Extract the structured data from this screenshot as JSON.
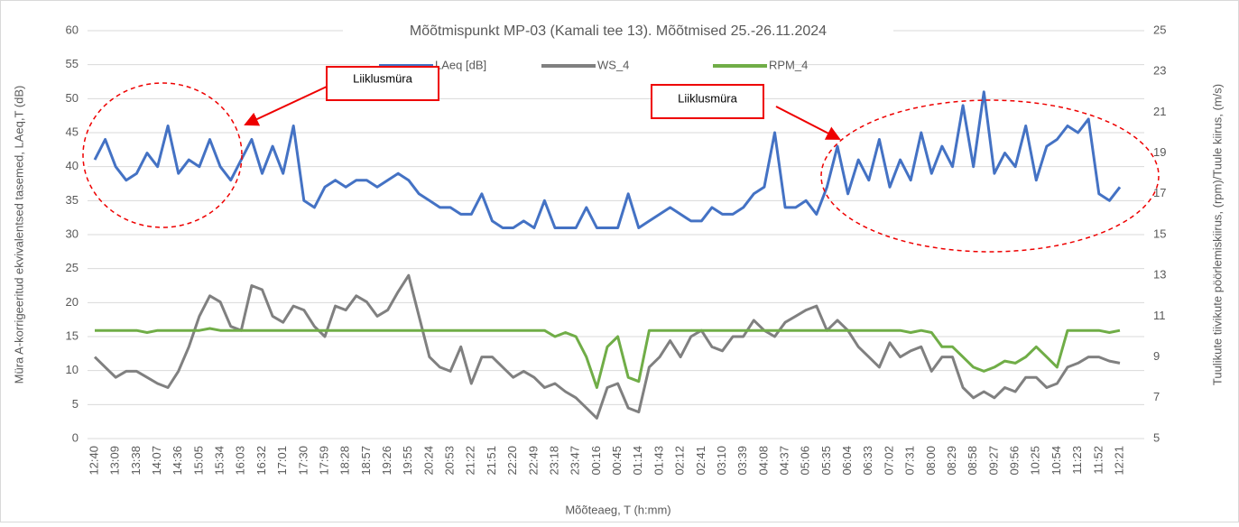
{
  "chart_data": {
    "type": "line",
    "title": "Mõõtmispunkt MP-03 (Kamali tee 13). Mõõtmised 25.-26.11.2024",
    "x_label": "Mõõteaeg, T (h:mm)",
    "y_label": "Müra A-korrigeeritud ekvivalentsed tasemed, LAeq,T (dB)",
    "y2_label": "Tuulikute tiivikute pöörlemiskiirus, (rpm)/Tuule kiirus, (m/s)",
    "annotations": [
      "Liiklusmüra",
      "Liiklusmüra"
    ],
    "categories": [
      "12:40",
      null,
      "13:09",
      null,
      "13:38",
      null,
      "14:07",
      null,
      "14:36",
      null,
      "15:05",
      null,
      "15:34",
      null,
      "16:03",
      null,
      "16:32",
      null,
      "17:01",
      null,
      "17:30",
      null,
      "17:59",
      null,
      "18:28",
      null,
      "18:57",
      null,
      "19:26",
      null,
      "19:55",
      null,
      "20:24",
      null,
      "20:53",
      null,
      "21:22",
      null,
      "21:51",
      null,
      "22:20",
      null,
      "22:49",
      null,
      "23:18",
      null,
      "23:47",
      null,
      "00:16",
      null,
      "00:45",
      null,
      "01:14",
      null,
      "01:43",
      null,
      "02:12",
      null,
      "02:41",
      null,
      "03:10",
      null,
      "03:39",
      null,
      "04:08",
      null,
      "04:37",
      null,
      "05:06",
      null,
      "05:35",
      null,
      "06:04",
      null,
      "06:33",
      null,
      "07:02",
      null,
      "07:31",
      null,
      "08:00",
      null,
      "08:29",
      null,
      "08:58",
      null,
      "09:27",
      null,
      "09:56",
      null,
      "10:25",
      null,
      "10:54",
      null,
      "11:23",
      null,
      "11:52",
      null,
      "12:21"
    ],
    "series": [
      {
        "name": "LAeq [dB]",
        "color": "#4472c4",
        "axis": "y",
        "values": [
          41,
          44,
          40,
          38,
          39,
          42,
          40,
          46,
          39,
          41,
          40,
          44,
          40,
          38,
          41,
          44,
          39,
          43,
          39,
          46,
          35,
          34,
          37,
          38,
          37,
          38,
          38,
          37,
          38,
          39,
          38,
          36,
          35,
          34,
          34,
          33,
          33,
          36,
          32,
          31,
          31,
          32,
          31,
          35,
          31,
          31,
          31,
          34,
          31,
          31,
          31,
          36,
          31,
          32,
          33,
          34,
          33,
          32,
          32,
          34,
          33,
          33,
          34,
          36,
          37,
          45,
          34,
          34,
          35,
          33,
          37,
          43,
          36,
          41,
          38,
          44,
          37,
          41,
          38,
          45,
          39,
          43,
          40,
          49,
          40,
          51,
          39,
          42,
          40,
          46,
          38,
          43,
          44,
          46,
          45,
          47,
          36,
          35,
          37
        ]
      },
      {
        "name": "WS_4",
        "color": "#808080",
        "axis": "y2",
        "values": [
          9.0,
          8.5,
          8.0,
          8.3,
          8.3,
          8.0,
          7.7,
          7.5,
          8.3,
          9.5,
          11.0,
          12.0,
          11.7,
          10.5,
          10.3,
          12.5,
          12.3,
          11.0,
          10.7,
          11.5,
          11.3,
          10.5,
          10.0,
          11.5,
          11.3,
          12.0,
          11.7,
          11.0,
          11.3,
          12.2,
          13.0,
          11.0,
          9.0,
          8.5,
          8.3,
          9.5,
          7.7,
          9.0,
          9.0,
          8.5,
          8.0,
          8.3,
          8.0,
          7.5,
          7.7,
          7.3,
          7.0,
          6.5,
          6.0,
          7.5,
          7.7,
          6.5,
          6.3,
          8.5,
          9.0,
          9.8,
          9.0,
          10.0,
          10.3,
          9.5,
          9.3,
          10.0,
          10.0,
          10.8,
          10.3,
          10.0,
          10.7,
          11.0,
          11.3,
          11.5,
          10.3,
          10.8,
          10.3,
          9.5,
          9.0,
          8.5,
          9.7,
          9.0,
          9.3,
          9.5,
          8.3,
          9.0,
          9.0,
          7.5,
          7.0,
          7.3,
          7.0,
          7.5,
          7.3,
          8.0,
          8.0,
          7.5,
          7.7,
          8.5,
          8.7,
          9.0,
          9.0,
          8.8,
          8.7
        ]
      },
      {
        "name": "RPM_4",
        "color": "#70ad47",
        "axis": "y2",
        "values": [
          10.3,
          10.3,
          10.3,
          10.3,
          10.3,
          10.2,
          10.3,
          10.3,
          10.3,
          10.3,
          10.3,
          10.4,
          10.3,
          10.3,
          10.3,
          10.3,
          10.3,
          10.3,
          10.3,
          10.3,
          10.3,
          10.3,
          10.3,
          10.3,
          10.3,
          10.3,
          10.3,
          10.3,
          10.3,
          10.3,
          10.3,
          10.3,
          10.3,
          10.3,
          10.3,
          10.3,
          10.3,
          10.3,
          10.3,
          10.3,
          10.3,
          10.3,
          10.3,
          10.3,
          10.0,
          10.2,
          10.0,
          9.0,
          7.5,
          9.5,
          10.0,
          8.0,
          7.8,
          10.3,
          10.3,
          10.3,
          10.3,
          10.3,
          10.3,
          10.3,
          10.3,
          10.3,
          10.3,
          10.3,
          10.3,
          10.3,
          10.3,
          10.3,
          10.3,
          10.3,
          10.3,
          10.3,
          10.3,
          10.3,
          10.3,
          10.3,
          10.3,
          10.3,
          10.2,
          10.3,
          10.2,
          9.5,
          9.5,
          9.0,
          8.5,
          8.3,
          8.5,
          8.8,
          8.7,
          9.0,
          9.5,
          9.0,
          8.5,
          10.3,
          10.3,
          10.3,
          10.3,
          10.2,
          10.3
        ]
      }
    ],
    "ylim": [
      0,
      60
    ],
    "yticks": [
      0,
      5,
      10,
      15,
      20,
      25,
      30,
      35,
      40,
      45,
      50,
      55,
      60
    ],
    "y2lim": [
      5,
      25
    ],
    "y2ticks": [
      5,
      7,
      9,
      11,
      13,
      15,
      17,
      19,
      21,
      23,
      25
    ],
    "grid": true
  }
}
